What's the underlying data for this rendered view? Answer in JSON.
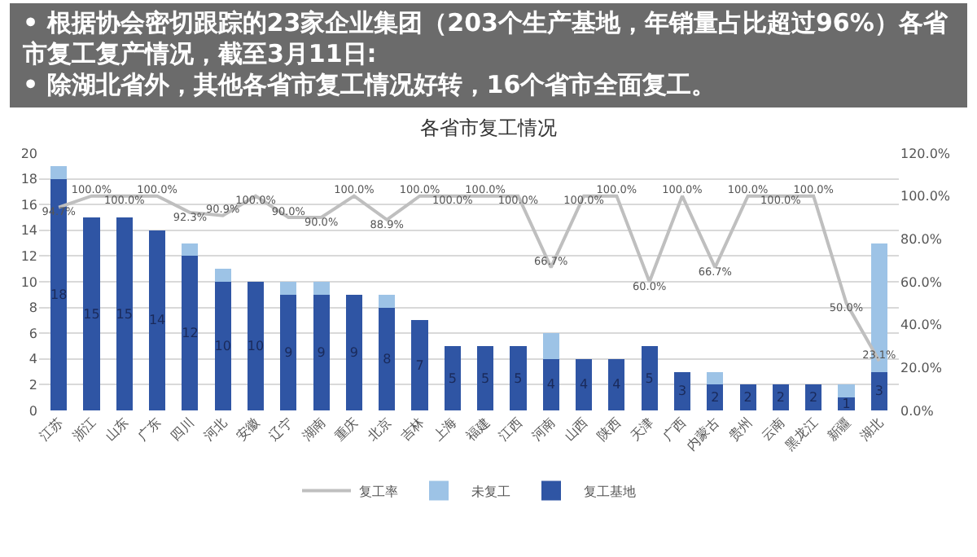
{
  "chart_data": {
    "type": "bar",
    "title": "各省市复工情况",
    "stacked": true,
    "grid": "y",
    "legend": "bottom",
    "annotations": [
      "• 根据协会密切跟踪的23家企业集团（203个生产基地，年销量占比超过96%）各省市复工复产情况，截至3月11日:",
      "• 除湖北省外，其他各省市复工情况好转，16个省市全面复工。"
    ],
    "categories": [
      "江苏",
      "浙江",
      "山东",
      "广东",
      "四川",
      "河北",
      "安徽",
      "辽宁",
      "湖南",
      "重庆",
      "北京",
      "吉林",
      "上海",
      "福建",
      "江西",
      "河南",
      "山西",
      "陕西",
      "天津",
      "广西",
      "内蒙古",
      "贵州",
      "云南",
      "黑龙江",
      "新疆",
      "湖北"
    ],
    "ylim": [
      0,
      20
    ],
    "yticks": [
      0,
      2,
      4,
      6,
      8,
      10,
      12,
      14,
      16,
      18,
      20
    ],
    "y2lim": [
      0,
      120
    ],
    "y2ticks": [
      {
        "value": 0,
        "label": "0.0%"
      },
      {
        "value": 20,
        "label": "20.0%"
      },
      {
        "value": 40,
        "label": "40.0%"
      },
      {
        "value": 60,
        "label": "60.0%"
      },
      {
        "value": 80,
        "label": "80.0%"
      },
      {
        "value": 100,
        "label": "100.0%"
      },
      {
        "value": 120,
        "label": "120.0%"
      }
    ],
    "series": [
      {
        "name": "复工基地",
        "color": "#2f55a4",
        "values": [
          18,
          15,
          15,
          14,
          12,
          10,
          10,
          9,
          9,
          9,
          8,
          7,
          5,
          5,
          5,
          4,
          4,
          4,
          5,
          3,
          2,
          2,
          2,
          2,
          1,
          3
        ],
        "value_labels": [
          "18",
          "15",
          "15",
          "14",
          "12",
          "10",
          "10",
          "9",
          "9",
          "9",
          "8",
          "7",
          "5",
          "5",
          "5",
          "4",
          "4",
          "4",
          "5",
          "3",
          "2",
          "2",
          "2",
          "2",
          "1",
          "3"
        ]
      },
      {
        "name": "未复工",
        "color": "#9dc3e6",
        "values": [
          1,
          0,
          0,
          0,
          1,
          1,
          0,
          1,
          1,
          0,
          1,
          0,
          0,
          0,
          0,
          2,
          0,
          0,
          0,
          0,
          1,
          0,
          0,
          0,
          1,
          10
        ]
      },
      {
        "name": "复工率",
        "type": "line",
        "axis": "y2",
        "color": "#bfbfbf",
        "values": [
          94.7,
          100,
          100,
          100,
          92.3,
          90.9,
          100,
          90,
          90,
          100,
          88.9,
          100,
          100,
          100,
          100,
          66.7,
          100,
          100,
          60,
          100,
          66.7,
          100,
          100,
          100,
          50,
          23.1
        ],
        "value_labels": [
          "94.7%",
          "100.0%",
          "100.0%",
          "100.0%",
          "92.3%",
          "90.9%",
          "100.0%",
          "90.0%",
          "90.0%",
          "100.0%",
          "88.9%",
          "100.0%",
          "100.0%",
          "100.0%",
          "100.0%",
          "66.7%",
          "100.0%",
          "100.0%",
          "60.0%",
          "100.0%",
          "66.7%",
          "100.0%",
          "100.0%",
          "100.0%",
          "50.0%",
          "23.1%"
        ]
      }
    ]
  }
}
